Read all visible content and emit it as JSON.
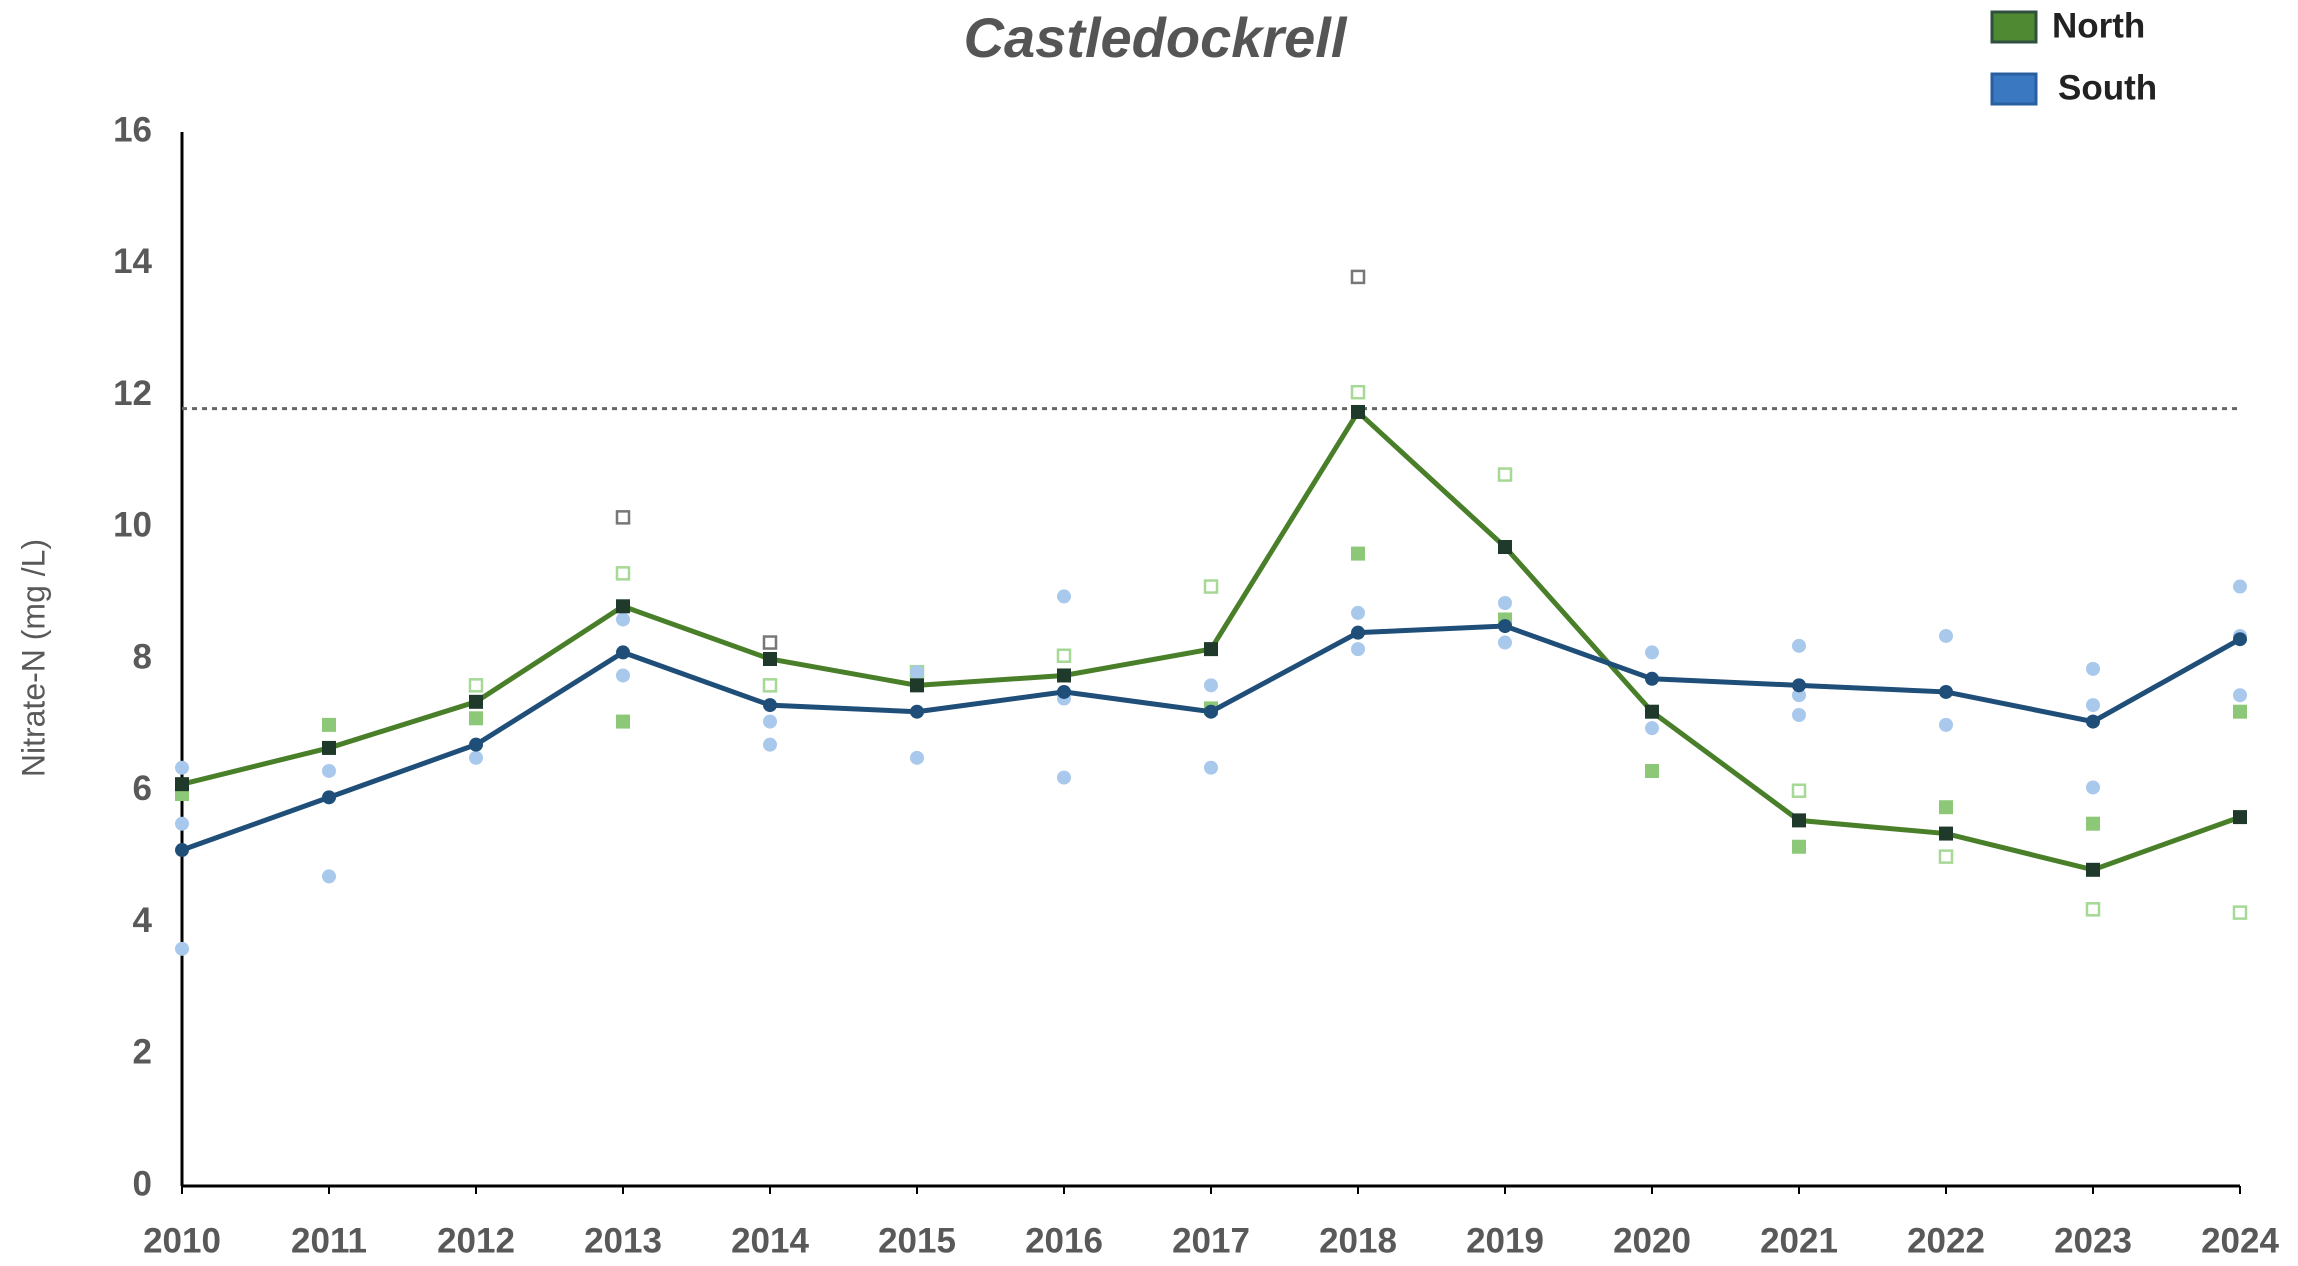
{
  "chart_data": {
    "type": "line",
    "title": "Castledockrell",
    "y_label": "Nitrate-N (mg /L)",
    "x": [
      2010,
      2011,
      2012,
      2013,
      2014,
      2015,
      2016,
      2017,
      2018,
      2019,
      2020,
      2021,
      2022,
      2023,
      2024
    ],
    "xlim": [
      2010,
      2024
    ],
    "xticks": [
      2010,
      2011,
      2012,
      2013,
      2014,
      2015,
      2016,
      2017,
      2018,
      2019,
      2020,
      2021,
      2022,
      2023,
      2024
    ],
    "ylim": [
      0,
      16
    ],
    "yticks": [
      0,
      2,
      4,
      6,
      8,
      10,
      12,
      14,
      16
    ],
    "grid": false,
    "legend": "top-right",
    "threshold": 11.8,
    "series": [
      {
        "name": "North",
        "color": "#4a7f2a",
        "marker_color": "#1f3a2a",
        "values": [
          6.1,
          6.65,
          7.35,
          8.8,
          8.0,
          7.6,
          7.75,
          8.15,
          11.75,
          9.7,
          7.2,
          5.55,
          5.35,
          4.8,
          5.6
        ]
      },
      {
        "name": "South",
        "color": "#1f4e79",
        "marker_color": "#1f4e79",
        "values": [
          5.1,
          5.9,
          6.7,
          8.1,
          7.3,
          7.2,
          7.5,
          7.2,
          8.4,
          8.5,
          7.7,
          7.6,
          7.5,
          7.05,
          8.3
        ]
      }
    ],
    "samples": [
      {
        "marker": "square",
        "color": "#8cc878",
        "x": [
          2010,
          2011,
          2012,
          2013,
          2017,
          2018,
          2019,
          2020,
          2021,
          2022,
          2023,
          2024
        ],
        "y": [
          5.95,
          7.0,
          7.1,
          7.05,
          7.25,
          9.6,
          8.6,
          6.3,
          5.15,
          5.75,
          5.5,
          7.2
        ]
      },
      {
        "marker": "open-square",
        "color": "#a6d896",
        "x": [
          2012,
          2013,
          2014,
          2015,
          2016,
          2017,
          2018,
          2019,
          2021,
          2022,
          2023,
          2024
        ],
        "y": [
          7.6,
          9.3,
          7.6,
          7.8,
          8.05,
          9.1,
          12.05,
          10.8,
          6.0,
          5.0,
          4.2,
          4.15
        ]
      },
      {
        "marker": "open-square",
        "color": "#777777",
        "x": [
          2013,
          2014,
          2018
        ],
        "y": [
          10.15,
          8.25,
          13.8
        ]
      },
      {
        "marker": "circle",
        "color": "#a8c8ec",
        "x": [
          2010,
          2010,
          2010,
          2011,
          2011,
          2012,
          2013,
          2013,
          2014,
          2014,
          2015,
          2015,
          2016,
          2016,
          2016,
          2017,
          2017,
          2018,
          2018,
          2019,
          2019,
          2020,
          2020,
          2021,
          2021,
          2021,
          2022,
          2022,
          2023,
          2023,
          2023,
          2024,
          2024,
          2024
        ],
        "y": [
          6.35,
          5.5,
          3.6,
          6.3,
          4.7,
          6.5,
          7.75,
          8.6,
          7.05,
          6.7,
          6.5,
          7.8,
          8.95,
          6.2,
          7.4,
          6.35,
          7.6,
          8.15,
          8.7,
          8.85,
          8.25,
          6.95,
          8.1,
          8.2,
          7.15,
          7.45,
          8.35,
          7.0,
          7.85,
          6.05,
          7.3,
          9.1,
          7.45,
          8.35
        ]
      }
    ]
  }
}
